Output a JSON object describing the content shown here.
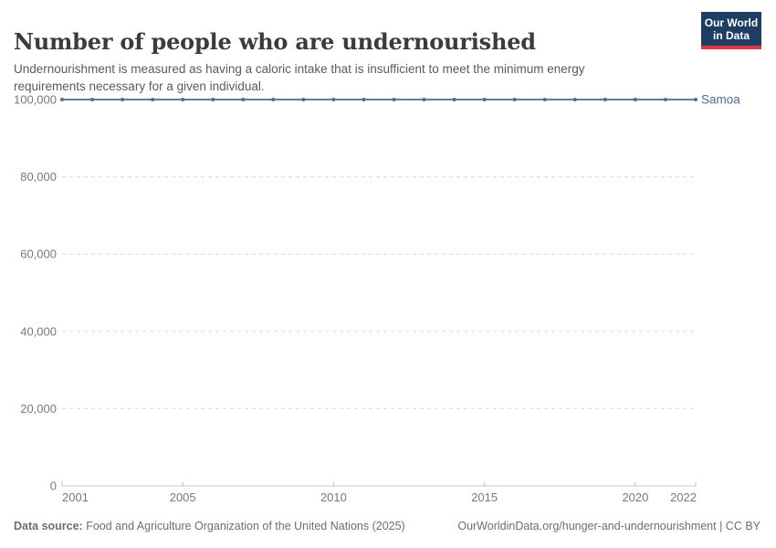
{
  "header": {
    "title": "Number of people who are undernourished",
    "subtitle": "Undernourishment is measured as having a caloric intake that is insufficient to meet the minimum energy requirements necessary for a given individual.",
    "logo": {
      "line1": "Our World",
      "line2": "in Data"
    }
  },
  "chart_data": {
    "type": "line",
    "title": "Number of people who are undernourished",
    "xlabel": "",
    "ylabel": "",
    "xlim": [
      2001,
      2022
    ],
    "ylim": [
      0,
      100000
    ],
    "xticks": [
      2001,
      2005,
      2010,
      2015,
      2020,
      2022
    ],
    "yticks": [
      {
        "value": 0,
        "label": "0"
      },
      {
        "value": 20000,
        "label": "20,000"
      },
      {
        "value": 40000,
        "label": "40,000"
      },
      {
        "value": 60000,
        "label": "60,000"
      },
      {
        "value": 80000,
        "label": "80,000"
      },
      {
        "value": 100000,
        "label": "100,000"
      }
    ],
    "grid": "horizontal-dashed",
    "legend": "series-end-label",
    "series": [
      {
        "name": "Samoa",
        "color": "#4C6A9C",
        "x": [
          2001,
          2002,
          2003,
          2004,
          2005,
          2006,
          2007,
          2008,
          2009,
          2010,
          2011,
          2012,
          2013,
          2014,
          2015,
          2016,
          2017,
          2018,
          2019,
          2020,
          2021,
          2022
        ],
        "values": [
          100000,
          100000,
          100000,
          100000,
          100000,
          100000,
          100000,
          100000,
          100000,
          100000,
          100000,
          100000,
          100000,
          100000,
          100000,
          100000,
          100000,
          100000,
          100000,
          100000,
          100000,
          100000
        ]
      }
    ]
  },
  "footer": {
    "source_label": "Data source:",
    "source_text": " Food and Agriculture Organization of the United Nations (2025)",
    "link_text": "OurWorldinData.org/hunger-and-undernourishment | CC BY"
  },
  "colors": {
    "brand_navy": "#1d3d63",
    "brand_red": "#e0373f",
    "series_blue": "#4C6A9C",
    "gridline": "#dadada",
    "axis": "#c4c4c4",
    "tick_text": "#787878",
    "title_text": "#3b3b3b",
    "subtitle_text": "#5a5a5a",
    "footer_text": "#6e6e6e"
  }
}
